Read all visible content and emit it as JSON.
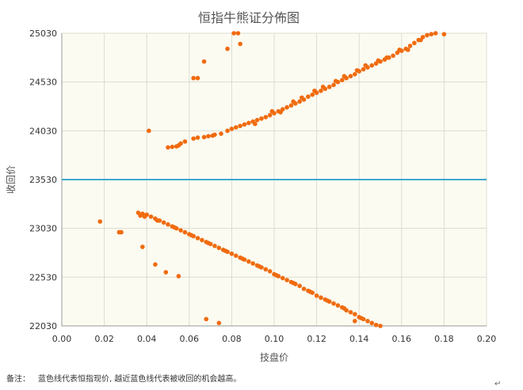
{
  "chart_data": {
    "type": "scatter",
    "title": "恒指牛熊证分佈图",
    "xlabel": "技盘价",
    "ylabel": "收回价",
    "xlim": [
      0.0,
      0.2
    ],
    "ylim": [
      22030,
      25030
    ],
    "x_ticks": [
      "0.00",
      "0.02",
      "0.04",
      "0.06",
      "0.08",
      "0.10",
      "0.12",
      "0.14",
      "0.16",
      "0.18",
      "0.20"
    ],
    "y_ticks": [
      "22030",
      "22530",
      "23030",
      "23530",
      "24030",
      "24530",
      "25030"
    ],
    "grid": true,
    "plot_background": "#fcfbf1",
    "reference_line": {
      "y": 23530,
      "color": "#3fa9cf"
    },
    "series": [
      {
        "color": "#f06b0e",
        "points": [
          [
            0.05,
            23860
          ],
          [
            0.052,
            23865
          ],
          [
            0.054,
            23870
          ],
          [
            0.055,
            23880
          ],
          [
            0.056,
            23900
          ],
          [
            0.058,
            23920
          ],
          [
            0.062,
            23950
          ],
          [
            0.064,
            23960
          ],
          [
            0.067,
            23965
          ],
          [
            0.069,
            23975
          ],
          [
            0.071,
            23980
          ],
          [
            0.072,
            23990
          ],
          [
            0.075,
            24000
          ],
          [
            0.078,
            24030
          ],
          [
            0.08,
            24050
          ],
          [
            0.082,
            24065
          ],
          [
            0.084,
            24080
          ],
          [
            0.086,
            24095
          ],
          [
            0.088,
            24110
          ],
          [
            0.09,
            24125
          ],
          [
            0.092,
            24140
          ],
          [
            0.094,
            24155
          ],
          [
            0.096,
            24170
          ],
          [
            0.098,
            24190
          ],
          [
            0.1,
            24210
          ],
          [
            0.102,
            24230
          ],
          [
            0.104,
            24250
          ],
          [
            0.106,
            24270
          ],
          [
            0.108,
            24290
          ],
          [
            0.11,
            24310
          ],
          [
            0.112,
            24330
          ],
          [
            0.114,
            24350
          ],
          [
            0.116,
            24380
          ],
          [
            0.118,
            24400
          ],
          [
            0.12,
            24420
          ],
          [
            0.122,
            24440
          ],
          [
            0.124,
            24460
          ],
          [
            0.126,
            24480
          ],
          [
            0.128,
            24500
          ],
          [
            0.13,
            24530
          ],
          [
            0.132,
            24550
          ],
          [
            0.134,
            24570
          ],
          [
            0.136,
            24590
          ],
          [
            0.138,
            24610
          ],
          [
            0.14,
            24640
          ],
          [
            0.142,
            24660
          ],
          [
            0.144,
            24680
          ],
          [
            0.146,
            24700
          ],
          [
            0.148,
            24720
          ],
          [
            0.15,
            24740
          ],
          [
            0.152,
            24760
          ],
          [
            0.154,
            24780
          ],
          [
            0.156,
            24800
          ],
          [
            0.158,
            24830
          ],
          [
            0.16,
            24850
          ],
          [
            0.162,
            24870
          ],
          [
            0.164,
            24900
          ],
          [
            0.166,
            24930
          ],
          [
            0.168,
            24960
          ],
          [
            0.17,
            24990
          ],
          [
            0.172,
            25010
          ],
          [
            0.174,
            25020
          ],
          [
            0.176,
            25030
          ],
          [
            0.091,
            24100
          ],
          [
            0.103,
            24220
          ],
          [
            0.113,
            24370
          ],
          [
            0.123,
            24480
          ],
          [
            0.133,
            24590
          ],
          [
            0.143,
            24700
          ],
          [
            0.153,
            24780
          ],
          [
            0.163,
            24860
          ],
          [
            0.099,
            24230
          ],
          [
            0.109,
            24330
          ],
          [
            0.119,
            24440
          ],
          [
            0.129,
            24540
          ],
          [
            0.139,
            24650
          ],
          [
            0.149,
            24750
          ],
          [
            0.159,
            24860
          ],
          [
            0.169,
            24960
          ],
          [
            0.041,
            24030
          ],
          [
            0.062,
            24570
          ],
          [
            0.064,
            24570
          ],
          [
            0.067,
            24740
          ],
          [
            0.081,
            25030
          ],
          [
            0.083,
            25030
          ],
          [
            0.078,
            24870
          ],
          [
            0.084,
            24920
          ],
          [
            0.18,
            25020
          ],
          [
            0.036,
            23190
          ],
          [
            0.038,
            23180
          ],
          [
            0.04,
            23170
          ],
          [
            0.042,
            23150
          ],
          [
            0.044,
            23130
          ],
          [
            0.046,
            23110
          ],
          [
            0.048,
            23090
          ],
          [
            0.05,
            23070
          ],
          [
            0.052,
            23050
          ],
          [
            0.054,
            23030
          ],
          [
            0.056,
            23010
          ],
          [
            0.058,
            22990
          ],
          [
            0.06,
            22970
          ],
          [
            0.062,
            22950
          ],
          [
            0.064,
            22930
          ],
          [
            0.066,
            22910
          ],
          [
            0.068,
            22890
          ],
          [
            0.07,
            22870
          ],
          [
            0.072,
            22850
          ],
          [
            0.074,
            22830
          ],
          [
            0.076,
            22810
          ],
          [
            0.078,
            22790
          ],
          [
            0.08,
            22770
          ],
          [
            0.082,
            22750
          ],
          [
            0.084,
            22730
          ],
          [
            0.086,
            22710
          ],
          [
            0.088,
            22690
          ],
          [
            0.09,
            22670
          ],
          [
            0.092,
            22650
          ],
          [
            0.094,
            22630
          ],
          [
            0.096,
            22610
          ],
          [
            0.098,
            22590
          ],
          [
            0.1,
            22560
          ],
          [
            0.102,
            22540
          ],
          [
            0.104,
            22520
          ],
          [
            0.106,
            22500
          ],
          [
            0.108,
            22480
          ],
          [
            0.11,
            22460
          ],
          [
            0.112,
            22440
          ],
          [
            0.114,
            22410
          ],
          [
            0.116,
            22390
          ],
          [
            0.118,
            22370
          ],
          [
            0.12,
            22340
          ],
          [
            0.122,
            22320
          ],
          [
            0.124,
            22300
          ],
          [
            0.126,
            22280
          ],
          [
            0.128,
            22260
          ],
          [
            0.13,
            22240
          ],
          [
            0.132,
            22220
          ],
          [
            0.134,
            22190
          ],
          [
            0.136,
            22170
          ],
          [
            0.138,
            22150
          ],
          [
            0.14,
            22120
          ],
          [
            0.142,
            22100
          ],
          [
            0.144,
            22080
          ],
          [
            0.146,
            22060
          ],
          [
            0.148,
            22040
          ],
          [
            0.15,
            22030
          ],
          [
            0.037,
            23160
          ],
          [
            0.039,
            23150
          ],
          [
            0.045,
            23110
          ],
          [
            0.053,
            23040
          ],
          [
            0.061,
            22960
          ],
          [
            0.069,
            22880
          ],
          [
            0.077,
            22800
          ],
          [
            0.085,
            22720
          ],
          [
            0.093,
            22640
          ],
          [
            0.101,
            22550
          ],
          [
            0.109,
            22470
          ],
          [
            0.117,
            22380
          ],
          [
            0.125,
            22290
          ],
          [
            0.133,
            22210
          ],
          [
            0.141,
            22110
          ],
          [
            0.018,
            23100
          ],
          [
            0.027,
            22990
          ],
          [
            0.028,
            22990
          ],
          [
            0.038,
            22840
          ],
          [
            0.044,
            22660
          ],
          [
            0.049,
            22580
          ],
          [
            0.055,
            22540
          ],
          [
            0.068,
            22100
          ],
          [
            0.074,
            22060
          ],
          [
            0.138,
            22080
          ]
        ]
      }
    ]
  },
  "footnote": {
    "label": "备注：",
    "text": "蓝色线代表恒指现价, 越近蓝色线代表被收回的机会越高。"
  }
}
